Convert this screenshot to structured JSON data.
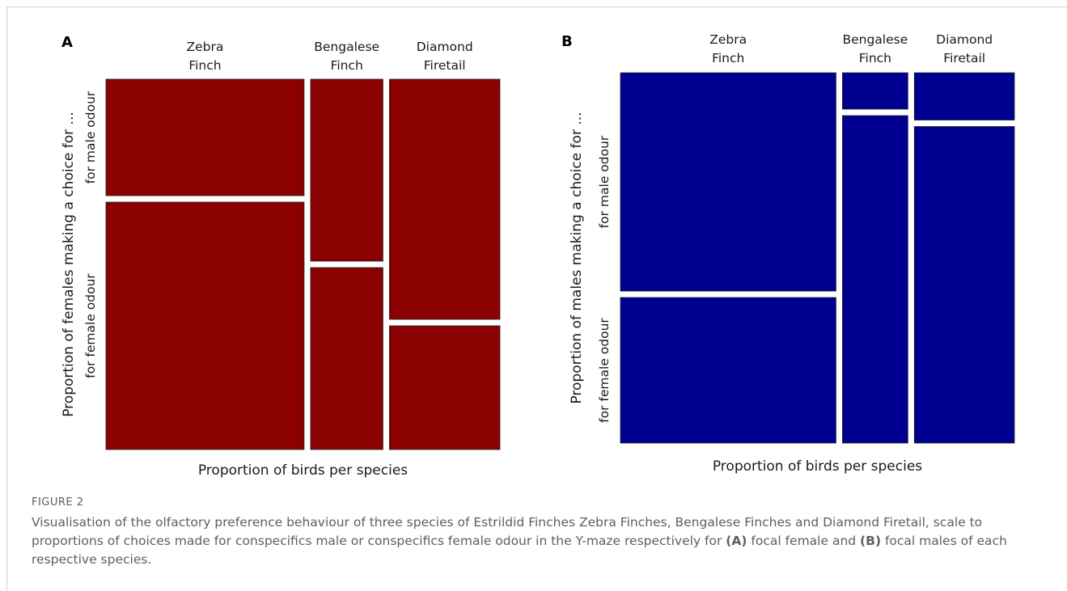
{
  "chart_data": [
    {
      "type": "mosaic",
      "panel_label": "A",
      "categories": [
        "Zebra\nFinch",
        "Bengalese\nFinch",
        "Diamond\nFiretail"
      ],
      "species_proportions": [
        0.52,
        0.19,
        0.29
      ],
      "segments": [
        "for male odour",
        "for female odour"
      ],
      "series": [
        {
          "name": "for male odour",
          "values": [
            0.32,
            0.5,
            0.66
          ]
        },
        {
          "name": "for female odour",
          "values": [
            0.68,
            0.5,
            0.34
          ]
        }
      ],
      "xlabel": "Proportion  of birds per species",
      "ylabel": "Proportion  of females  making a choice for ...",
      "color": "#8b0000"
    },
    {
      "type": "mosaic",
      "panel_label": "B",
      "categories": [
        "Zebra\nFinch",
        "Bengalese\nFinch",
        "Diamond\nFiretail"
      ],
      "species_proportions": [
        0.56,
        0.17,
        0.26
      ],
      "segments": [
        "for male odour",
        "for female odour"
      ],
      "series": [
        {
          "name": "for male odour",
          "values": [
            0.6,
            0.1,
            0.13
          ]
        },
        {
          "name": "for female odour",
          "values": [
            0.4,
            0.9,
            0.87
          ]
        }
      ],
      "xlabel": "Proportion  of birds per species",
      "ylabel": "Proportion  of males making a choice for ...",
      "color": "#000090"
    }
  ],
  "caption": {
    "label": "FIGURE 2",
    "text_before_a": "Visualisation of the olfactory preference behaviour of three species of Estrildid Finches Zebra Finches, Bengalese Finches and Diamond Firetail, scale to proportions of choices made for conspecifics male or conspecifics female odour in the Y-maze respectively for ",
    "ref_a": "(A)",
    "text_middle": " focal female and ",
    "ref_b": "(B)",
    "text_after_b": " focal males of each respective species."
  }
}
